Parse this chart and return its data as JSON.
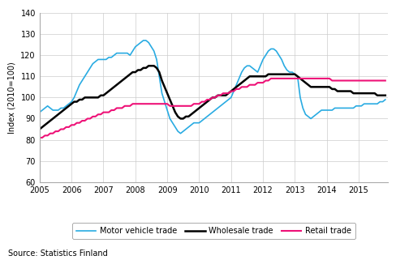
{
  "ylabel": "Index (2010=100)",
  "source": "Source: Statistics Finland",
  "ylim": [
    60,
    140
  ],
  "yticks": [
    60,
    70,
    80,
    90,
    100,
    110,
    120,
    130,
    140
  ],
  "xlim_start": 2005.0,
  "xlim_end": 2015.92,
  "xtick_years": [
    2005,
    2006,
    2007,
    2008,
    2009,
    2010,
    2011,
    2012,
    2013,
    2014,
    2015
  ],
  "motor_color": "#29ABE2",
  "wholesale_color": "#000000",
  "retail_color": "#EE1177",
  "legend_labels": [
    "Motor vehicle trade",
    "Wholesale trade",
    "Retail trade"
  ],
  "motor_x": [
    2005.0,
    2005.083,
    2005.167,
    2005.25,
    2005.333,
    2005.417,
    2005.5,
    2005.583,
    2005.667,
    2005.75,
    2005.833,
    2005.917,
    2006.0,
    2006.083,
    2006.167,
    2006.25,
    2006.333,
    2006.417,
    2006.5,
    2006.583,
    2006.667,
    2006.75,
    2006.833,
    2006.917,
    2007.0,
    2007.083,
    2007.167,
    2007.25,
    2007.333,
    2007.417,
    2007.5,
    2007.583,
    2007.667,
    2007.75,
    2007.833,
    2007.917,
    2008.0,
    2008.083,
    2008.167,
    2008.25,
    2008.333,
    2008.417,
    2008.5,
    2008.583,
    2008.667,
    2008.75,
    2008.833,
    2008.917,
    2009.0,
    2009.083,
    2009.167,
    2009.25,
    2009.333,
    2009.417,
    2009.5,
    2009.583,
    2009.667,
    2009.75,
    2009.833,
    2009.917,
    2010.0,
    2010.083,
    2010.167,
    2010.25,
    2010.333,
    2010.417,
    2010.5,
    2010.583,
    2010.667,
    2010.75,
    2010.833,
    2010.917,
    2011.0,
    2011.083,
    2011.167,
    2011.25,
    2011.333,
    2011.417,
    2011.5,
    2011.583,
    2011.667,
    2011.75,
    2011.833,
    2011.917,
    2012.0,
    2012.083,
    2012.167,
    2012.25,
    2012.333,
    2012.417,
    2012.5,
    2012.583,
    2012.667,
    2012.75,
    2012.833,
    2012.917,
    2013.0,
    2013.083,
    2013.167,
    2013.25,
    2013.333,
    2013.417,
    2013.5,
    2013.583,
    2013.667,
    2013.75,
    2013.833,
    2013.917,
    2014.0,
    2014.083,
    2014.167,
    2014.25,
    2014.333,
    2014.417,
    2014.5,
    2014.583,
    2014.667,
    2014.75,
    2014.833,
    2014.917,
    2015.0,
    2015.083,
    2015.167,
    2015.25,
    2015.333,
    2015.417,
    2015.5,
    2015.583,
    2015.667,
    2015.75,
    2015.833
  ],
  "motor_y": [
    93,
    94,
    95,
    96,
    95,
    94,
    94,
    94,
    95,
    95,
    96,
    97,
    98,
    100,
    103,
    106,
    108,
    110,
    112,
    114,
    116,
    117,
    118,
    118,
    118,
    118,
    119,
    119,
    120,
    121,
    121,
    121,
    121,
    121,
    120,
    122,
    124,
    125,
    126,
    127,
    127,
    126,
    124,
    122,
    118,
    110,
    102,
    98,
    94,
    90,
    88,
    86,
    84,
    83,
    84,
    85,
    86,
    87,
    88,
    88,
    88,
    89,
    90,
    91,
    92,
    93,
    94,
    95,
    96,
    97,
    98,
    99,
    100,
    103,
    106,
    109,
    112,
    114,
    115,
    115,
    114,
    113,
    112,
    115,
    118,
    120,
    122,
    123,
    123,
    122,
    120,
    118,
    115,
    113,
    112,
    112,
    111,
    110,
    100,
    95,
    92,
    91,
    90,
    91,
    92,
    93,
    94,
    94,
    94,
    94,
    94,
    95,
    95,
    95,
    95,
    95,
    95,
    95,
    95,
    96,
    96,
    96,
    97,
    97,
    97,
    97,
    97,
    97,
    98,
    98,
    99
  ],
  "wholesale_x": [
    2005.0,
    2005.083,
    2005.167,
    2005.25,
    2005.333,
    2005.417,
    2005.5,
    2005.583,
    2005.667,
    2005.75,
    2005.833,
    2005.917,
    2006.0,
    2006.083,
    2006.167,
    2006.25,
    2006.333,
    2006.417,
    2006.5,
    2006.583,
    2006.667,
    2006.75,
    2006.833,
    2006.917,
    2007.0,
    2007.083,
    2007.167,
    2007.25,
    2007.333,
    2007.417,
    2007.5,
    2007.583,
    2007.667,
    2007.75,
    2007.833,
    2007.917,
    2008.0,
    2008.083,
    2008.167,
    2008.25,
    2008.333,
    2008.417,
    2008.5,
    2008.583,
    2008.667,
    2008.75,
    2008.833,
    2008.917,
    2009.0,
    2009.083,
    2009.167,
    2009.25,
    2009.333,
    2009.417,
    2009.5,
    2009.583,
    2009.667,
    2009.75,
    2009.833,
    2009.917,
    2010.0,
    2010.083,
    2010.167,
    2010.25,
    2010.333,
    2010.417,
    2010.5,
    2010.583,
    2010.667,
    2010.75,
    2010.833,
    2010.917,
    2011.0,
    2011.083,
    2011.167,
    2011.25,
    2011.333,
    2011.417,
    2011.5,
    2011.583,
    2011.667,
    2011.75,
    2011.833,
    2011.917,
    2012.0,
    2012.083,
    2012.167,
    2012.25,
    2012.333,
    2012.417,
    2012.5,
    2012.583,
    2012.667,
    2012.75,
    2012.833,
    2012.917,
    2013.0,
    2013.083,
    2013.167,
    2013.25,
    2013.333,
    2013.417,
    2013.5,
    2013.583,
    2013.667,
    2013.75,
    2013.833,
    2013.917,
    2014.0,
    2014.083,
    2014.167,
    2014.25,
    2014.333,
    2014.417,
    2014.5,
    2014.583,
    2014.667,
    2014.75,
    2014.833,
    2014.917,
    2015.0,
    2015.083,
    2015.167,
    2015.25,
    2015.333,
    2015.417,
    2015.5,
    2015.583,
    2015.667,
    2015.75,
    2015.833
  ],
  "wholesale_y": [
    85,
    86,
    87,
    88,
    89,
    90,
    91,
    92,
    93,
    94,
    95,
    96,
    97,
    98,
    98,
    99,
    99,
    100,
    100,
    100,
    100,
    100,
    100,
    101,
    101,
    102,
    103,
    104,
    105,
    106,
    107,
    108,
    109,
    110,
    111,
    112,
    112,
    113,
    113,
    114,
    114,
    115,
    115,
    115,
    114,
    112,
    108,
    105,
    102,
    99,
    96,
    93,
    91,
    90,
    90,
    91,
    91,
    92,
    93,
    94,
    95,
    96,
    97,
    98,
    99,
    100,
    100,
    101,
    101,
    101,
    101,
    102,
    103,
    104,
    105,
    106,
    107,
    108,
    109,
    110,
    110,
    110,
    110,
    110,
    110,
    110,
    111,
    111,
    111,
    111,
    111,
    111,
    111,
    111,
    111,
    111,
    111,
    110,
    109,
    108,
    107,
    106,
    105,
    105,
    105,
    105,
    105,
    105,
    105,
    105,
    104,
    104,
    103,
    103,
    103,
    103,
    103,
    103,
    102,
    102,
    102,
    102,
    102,
    102,
    102,
    102,
    102,
    101,
    101,
    101,
    101
  ],
  "retail_x": [
    2005.0,
    2005.083,
    2005.167,
    2005.25,
    2005.333,
    2005.417,
    2005.5,
    2005.583,
    2005.667,
    2005.75,
    2005.833,
    2005.917,
    2006.0,
    2006.083,
    2006.167,
    2006.25,
    2006.333,
    2006.417,
    2006.5,
    2006.583,
    2006.667,
    2006.75,
    2006.833,
    2006.917,
    2007.0,
    2007.083,
    2007.167,
    2007.25,
    2007.333,
    2007.417,
    2007.5,
    2007.583,
    2007.667,
    2007.75,
    2007.833,
    2007.917,
    2008.0,
    2008.083,
    2008.167,
    2008.25,
    2008.333,
    2008.417,
    2008.5,
    2008.583,
    2008.667,
    2008.75,
    2008.833,
    2008.917,
    2009.0,
    2009.083,
    2009.167,
    2009.25,
    2009.333,
    2009.417,
    2009.5,
    2009.583,
    2009.667,
    2009.75,
    2009.833,
    2009.917,
    2010.0,
    2010.083,
    2010.167,
    2010.25,
    2010.333,
    2010.417,
    2010.5,
    2010.583,
    2010.667,
    2010.75,
    2010.833,
    2010.917,
    2011.0,
    2011.083,
    2011.167,
    2011.25,
    2011.333,
    2011.417,
    2011.5,
    2011.583,
    2011.667,
    2011.75,
    2011.833,
    2011.917,
    2012.0,
    2012.083,
    2012.167,
    2012.25,
    2012.333,
    2012.417,
    2012.5,
    2012.583,
    2012.667,
    2012.75,
    2012.833,
    2012.917,
    2013.0,
    2013.083,
    2013.167,
    2013.25,
    2013.333,
    2013.417,
    2013.5,
    2013.583,
    2013.667,
    2013.75,
    2013.833,
    2013.917,
    2014.0,
    2014.083,
    2014.167,
    2014.25,
    2014.333,
    2014.417,
    2014.5,
    2014.583,
    2014.667,
    2014.75,
    2014.833,
    2014.917,
    2015.0,
    2015.083,
    2015.167,
    2015.25,
    2015.333,
    2015.417,
    2015.5,
    2015.583,
    2015.667,
    2015.75,
    2015.833
  ],
  "retail_y": [
    81,
    81,
    82,
    82,
    83,
    83,
    84,
    84,
    85,
    85,
    86,
    86,
    87,
    87,
    88,
    88,
    89,
    89,
    90,
    90,
    91,
    91,
    92,
    92,
    93,
    93,
    93,
    94,
    94,
    95,
    95,
    95,
    96,
    96,
    96,
    97,
    97,
    97,
    97,
    97,
    97,
    97,
    97,
    97,
    97,
    97,
    97,
    97,
    97,
    96,
    96,
    96,
    96,
    96,
    96,
    96,
    96,
    96,
    97,
    97,
    97,
    98,
    98,
    99,
    99,
    100,
    100,
    101,
    101,
    102,
    102,
    102,
    103,
    103,
    104,
    104,
    105,
    105,
    105,
    106,
    106,
    106,
    107,
    107,
    107,
    108,
    108,
    109,
    109,
    109,
    109,
    109,
    109,
    109,
    109,
    109,
    109,
    109,
    109,
    109,
    109,
    109,
    109,
    109,
    109,
    109,
    109,
    109,
    109,
    109,
    108,
    108,
    108,
    108,
    108,
    108,
    108,
    108,
    108,
    108,
    108,
    108,
    108,
    108,
    108,
    108,
    108,
    108,
    108,
    108,
    108
  ]
}
